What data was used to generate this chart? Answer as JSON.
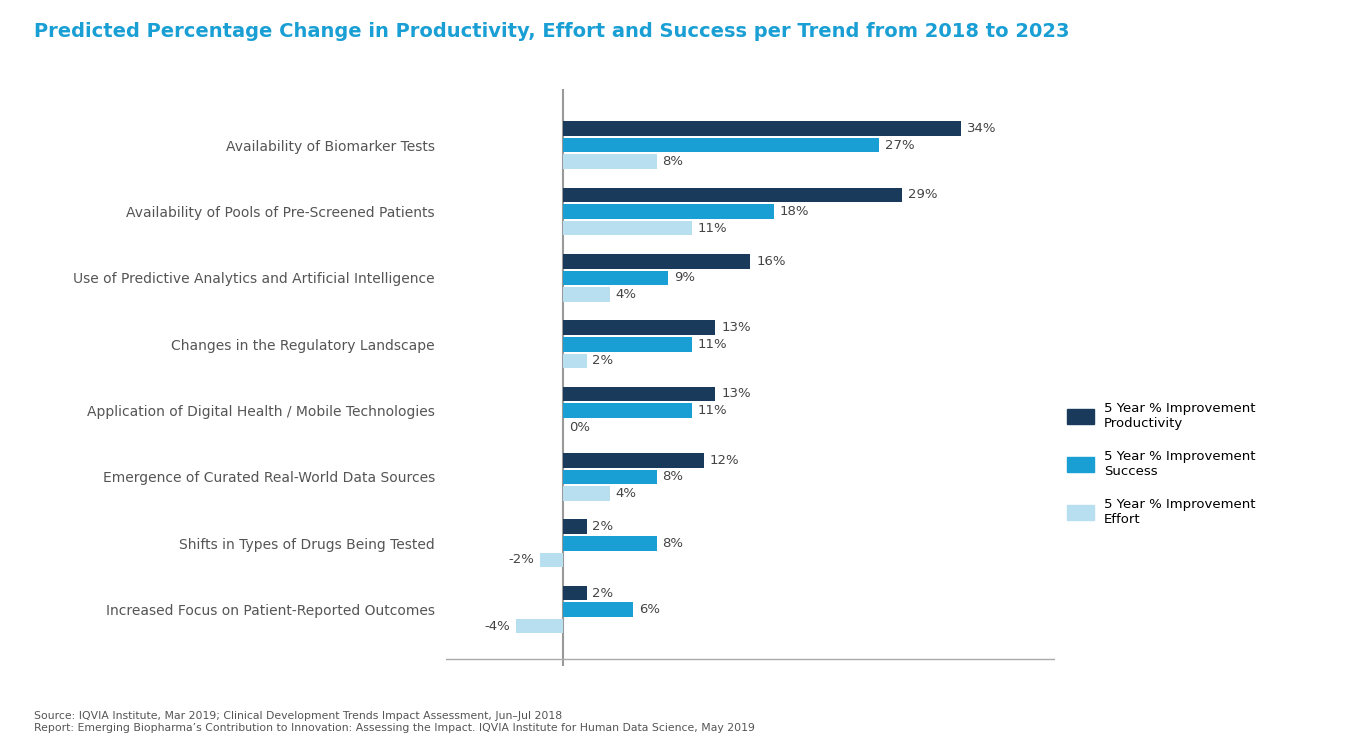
{
  "title": "Predicted Percentage Change in Productivity, Effort and Success per Trend from 2018 to 2023",
  "categories": [
    "Availability of Biomarker Tests",
    "Availability of Pools of Pre-Screened Patients",
    "Use of Predictive Analytics and Artificial Intelligence",
    "Changes in the Regulatory Landscape",
    "Application of Digital Health / Mobile Technologies",
    "Emergence of Curated Real-World Data Sources",
    "Shifts in Types of Drugs Being Tested",
    "Increased Focus on Patient-Reported Outcomes"
  ],
  "productivity": [
    34,
    29,
    16,
    13,
    13,
    12,
    2,
    2
  ],
  "success": [
    27,
    18,
    9,
    11,
    11,
    8,
    8,
    6
  ],
  "effort": [
    8,
    11,
    4,
    2,
    0,
    4,
    -2,
    -4
  ],
  "color_productivity": "#1a3a5c",
  "color_success": "#1a9fd4",
  "color_effort": "#b8dff0",
  "bar_height": 0.22,
  "bar_gap": 0.03,
  "xlim": [
    -10,
    42
  ],
  "title_color": "#1a9fd4",
  "title_fontsize": 14,
  "label_fontsize": 10,
  "value_fontsize": 9.5,
  "legend_labels": [
    "5 Year % Improvement\nProductivity",
    "5 Year % Improvement\nSuccess",
    "5 Year % Improvement\nEffort"
  ],
  "source_text": "Source: IQVIA Institute, Mar 2019; Clinical Development Trends Impact Assessment, Jun–Jul 2018\nReport: Emerging Biopharma’s Contribution to Innovation: Assessing the Impact. IQVIA Institute for Human Data Science, May 2019",
  "vline_color": "#999999",
  "hline_color": "#aaaaaa"
}
